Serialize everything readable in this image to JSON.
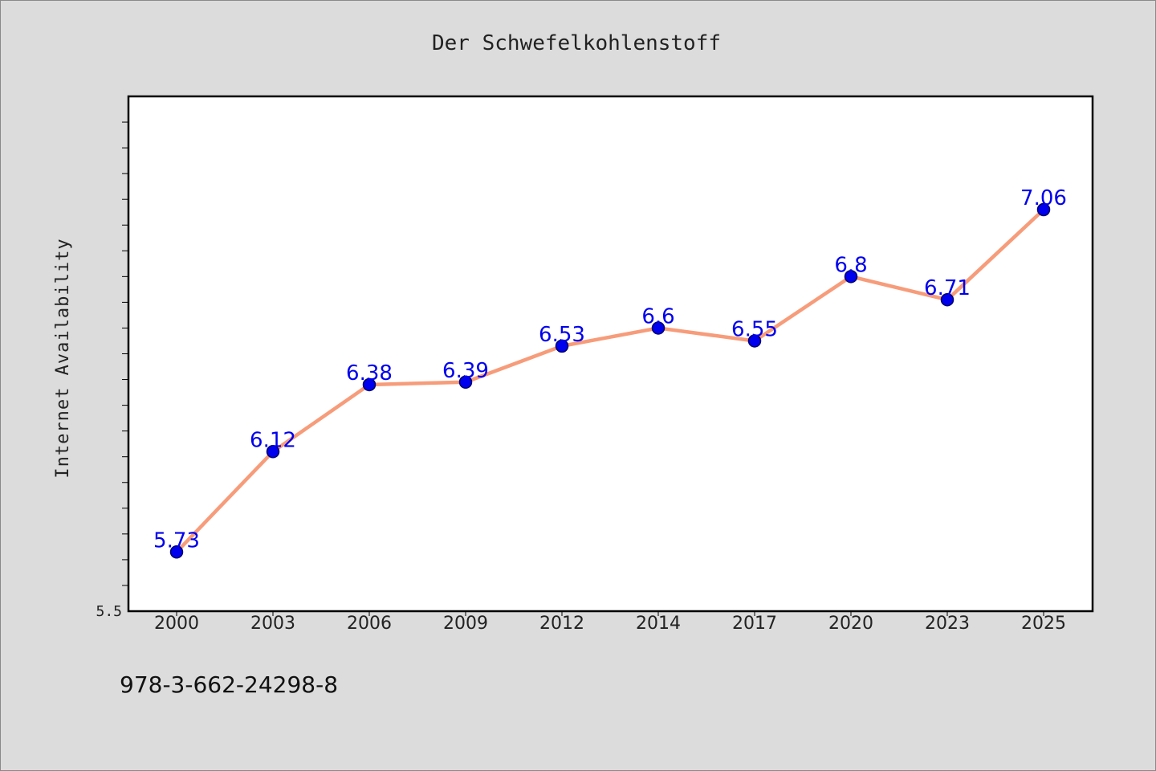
{
  "chart_data": {
    "type": "line",
    "title": "Der Schwefelkohlenstoff",
    "xlabel": "",
    "ylabel": "Internet Availability",
    "categories": [
      "2000",
      "2003",
      "2006",
      "2009",
      "2012",
      "2014",
      "2017",
      "2020",
      "2023",
      "2025"
    ],
    "series": [
      {
        "values": [
          5.73,
          6.12,
          6.38,
          6.39,
          6.53,
          6.6,
          6.55,
          6.8,
          6.71,
          7.06
        ]
      }
    ],
    "ylim": [
      5.5,
      7.5
    ],
    "y_tick_labels": [
      "5.5"
    ],
    "grid": false,
    "legend": "none",
    "colors": {
      "line": "#f79c7a",
      "marker": "#0000ee",
      "marker_edge": "#00006b",
      "data_label": "#0000ee",
      "plot_background": "#ffffff",
      "figure_background": "#dcdcdc"
    }
  },
  "footer": {
    "isbn": "978-3-662-24298-8"
  }
}
